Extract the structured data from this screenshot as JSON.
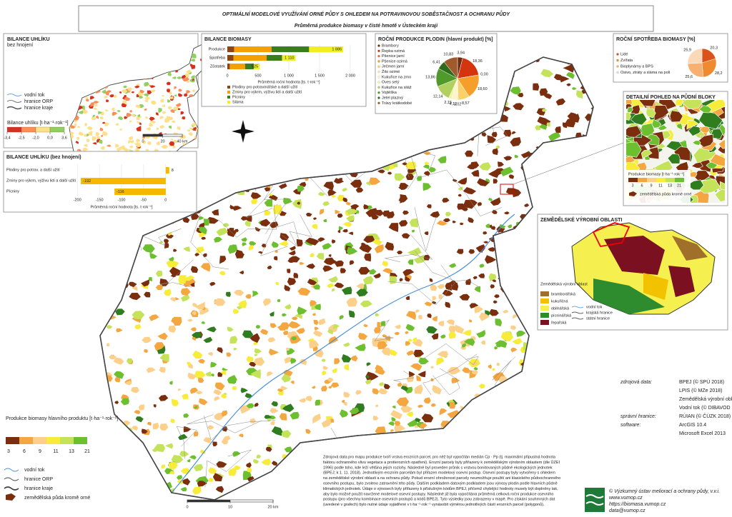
{
  "title": "OPTIMÁLNÍ MODELOVÉ VYUŽÍVÁNÍ ORNÉ PŮDY S OHLEDEM NA POTRAVINOVOU SOBĚSTAČNOST A OCHRANU PŮDY",
  "subtitle": "Průměrná produkce biomasy v čisté hmotě v Ústeckém kraji",
  "carbon_map": {
    "title": "BILANCE UHLÍKU",
    "subtitle": "bez hnojení",
    "legend": [
      "vodní tok",
      "hranice ORP",
      "hranice kraje"
    ],
    "scale_title": "Bilance uhlíku [t·ha⁻¹·rok⁻¹]",
    "scale_ticks": [
      {
        "value": -3.4,
        "label": "-3,4"
      },
      {
        "value": -2.5,
        "label": "-2,5"
      },
      {
        "value": -2.0,
        "label": "-2,0"
      },
      {
        "value": 0.0,
        "label": "0,0"
      },
      {
        "value": 3.6,
        "label": "3,6"
      }
    ],
    "scale_colors": [
      "#d7301f",
      "#fc8d59",
      "#fee08b",
      "#91cf60"
    ],
    "distance_ticks": [
      0,
      20,
      {
        "value": 40,
        "label": "40 km"
      }
    ]
  },
  "chart_data": [
    {
      "type": "hbar_stacked",
      "title": "BILANCE BIOMASY",
      "categories": [
        "Produkce",
        "Spotřeba",
        "Zůstatek"
      ],
      "series": [
        {
          "name": "Plodiny pro potravinářské a další užití",
          "color": "#8b4513",
          "values": [
            110,
            100,
            40
          ]
        },
        {
          "name": "Zrniny pro výkrm, výživu lidí a další užití",
          "color": "#f5a000",
          "values": [
            610,
            540,
            250
          ]
        },
        {
          "name": "Pícniny",
          "color": "#3a7d1e",
          "values": [
            610,
            250,
            140
          ]
        },
        {
          "name": "Sláma",
          "color": "#f0f020",
          "values": [
            556,
            220,
            95
          ]
        }
      ],
      "totals": [
        1886,
        1110,
        525
      ],
      "total_labels": [
        "1 886",
        "1 110",
        "525"
      ],
      "xlim": [
        0,
        2000
      ],
      "xticks": [
        0,
        500,
        {
          "value": 1000,
          "label": "1 000"
        },
        {
          "value": 1500,
          "label": "1 500"
        },
        {
          "value": 2000,
          "label": "2 000"
        }
      ],
      "xlabel": "Průměrná roční hodnota [ts. t·rok⁻¹]"
    },
    {
      "type": "hbar",
      "title": "BILANCE UHLÍKU (bez hnojení)",
      "categories": [
        "Plodiny pro potrav. a další užití",
        "Zrniny pro výkrm, výživu lidí a další užití",
        "Pícniny"
      ],
      "values": [
        8,
        -192,
        -116
      ],
      "color": "#f5b800",
      "xlim": [
        -210,
        10
      ],
      "xticks": [
        -200,
        -150,
        -100,
        -50,
        0
      ],
      "xlabel": "Průměrná roční hodnota [ts. t·rok⁻¹]"
    },
    {
      "type": "pie",
      "title": "ROČNÍ PRODUKCE PLODIN (hlavní produkt) [%]",
      "categories": [
        "Brambory",
        "Řepka ozimá",
        "Pšenice jarní",
        "Pšenice ozimá",
        "Ječmen jarní",
        "Žito ozimé",
        "Kukuřice na zrno",
        "Oves setý",
        "Kukuřice na siláž",
        "Vojtěška",
        "Jetel plazivý",
        "Trávy krátkodobé"
      ],
      "values": [
        3.94,
        18.36,
        0.0,
        18.6,
        8.57,
        1.02,
        4.12,
        2.15,
        12.14,
        13.86,
        6.41,
        10.83
      ],
      "value_labels": [
        "3,94",
        "18,36",
        "0,00",
        "18,60",
        "8,57",
        "1,02",
        "4,12",
        "2,15",
        "12,14",
        "13,86",
        "6,41",
        "10,83"
      ],
      "colors": [
        "#6b2d0f",
        "#d4350f",
        "#e8702a",
        "#f59f2a",
        "#fbd06a",
        "#fde9a8",
        "#fff3c8",
        "#f3f3a0",
        "#b0d060",
        "#4f9a2a",
        "#2e6b1a",
        "#a05a2c"
      ]
    },
    {
      "type": "pie",
      "title": "ROČNÍ SPOTŘEBA BIOMASY [%]",
      "categories": [
        "Lidé",
        "Zvířata",
        "Bioplynárny a BPS",
        "Osivo, ztráty a sláma na poli"
      ],
      "values": [
        20.3,
        28.2,
        25.6,
        25.9
      ],
      "value_labels": [
        "20,3",
        "28,2",
        "25,6",
        "25,9"
      ],
      "colors": [
        "#d9541a",
        "#f08a30",
        "#f7b070",
        "#fbd8b8"
      ]
    }
  ],
  "detail": {
    "title": "DETAILNÍ POHLED NA PŮDNÍ BLOKY",
    "legend_title": "Produkce biomasy [t·ha⁻¹·rok⁻¹]",
    "ticks": [
      3,
      6,
      9,
      11,
      13,
      21
    ],
    "other": "zemědělská půda kromě orné"
  },
  "zvo": {
    "title": "ZEMĚDĚLSKÉ VÝROBNÍ OBLASTI",
    "legend_title": "Zemědělská výrobní oblast",
    "classes": [
      "bramborářská",
      "kukuřičná",
      "obilnářská",
      "pícninářská",
      "řepařská"
    ],
    "colors": [
      "#a0702a",
      "#f2c200",
      "#f5f050",
      "#2e8b2e",
      "#7a1020"
    ],
    "lines": [
      "vodní tok",
      "krajská hranice",
      "státní hranice"
    ]
  },
  "legend": {
    "title": "Produkce biomasy hlavního produktu [t·ha⁻¹·rok⁻¹]",
    "ticks": [
      3,
      6,
      9,
      11,
      13,
      21
    ],
    "colors": [
      "#7a2e0e",
      "#f4a640",
      "#fccf8a",
      "#f7ec3a",
      "#c4e35a",
      "#6cbf2e",
      "#2f7d1f"
    ],
    "items": [
      "vodní tok",
      "hranice ORP",
      "hranice kraje",
      "zemědělská půda kromě orné"
    ],
    "distance_ticks": [
      0,
      10,
      {
        "value": 20,
        "label": "20 km"
      }
    ]
  },
  "sources": {
    "labels": [
      "zdrojová data:",
      "správní hranice:",
      "software:"
    ],
    "data": [
      "BPEJ (© SPÚ 2018)",
      "LPIS (© MZe 2018)",
      "Zemědělská výrobní oblast (© ÚZEI 1996)",
      "Vodní tok (© DIBAVOD 2018)"
    ],
    "boundaries": "RÚIAN (© ČÚZK 2018)",
    "software": [
      "ArcGIS 10.4",
      "Microsoft Excel 2013"
    ]
  },
  "note": [
    "Zdrojová data pro mapu produkce tvoří vrstva erozních parcel, pro něž byl vypočítán medián Cp · Pp (tj. maximální přípustná hodnota",
    "faktoru ochranného vlivu vegetace a protierozních opatření). Erozní parcely byly přiřazeny k zemědělským výrobním oblastem (dle ÚZEI",
    "1996) podle toho, kde leží většina jejich rozlohy. Následně byl proveden průnik s vrstvou bonitovaných půdně ekologických jednotek",
    "(BPEJ; k 1. 11. 2018). Jednotlivým erozním parcelám byl přiřazen modelový osevní postup. Osevní postupy byly vytvořeny s ohledem",
    "na zemědělské výrobní oblasti a na ochranu půdy. Pokud erozní ohroženost parcely neumožňuje použití ani klasického půdoochranného",
    "osevního postupu, bylo zvoleno zatravnění této půdy. Dalším podkladem datovým podkladem jsou výnosy plodin podle hlavních půdně",
    "klimatických jednotek. Údaje o výnosech byly přiřazeny k příslušným kódům BPEJ, přičemž chybějící hodnoty musely být doplněny tak,",
    "aby bylo možné použít navržené modelové osevní postupy. Následně již byla vypočítána průměrná celková roční produkce osevního",
    "postupu (pro všechny kombinace osevních postupů a kódů BPEJ). Tyto výsledky jsou zobrazeny v mapě. Pro získání souhrnných dat",
    "(uvedené v grafech) bylo nutné údaje vyjádřené v t·ha⁻¹·rok⁻¹ vynásobit výměrou jednotlivých částí erozních parcel (polygonů)."
  ],
  "footer": [
    "© Výzkumný ústav meliorací a ochrany půdy, v.v.i.",
    "www.vumop.cz",
    "https://biomasa.vumop.cz",
    "data@vumop.cz"
  ]
}
